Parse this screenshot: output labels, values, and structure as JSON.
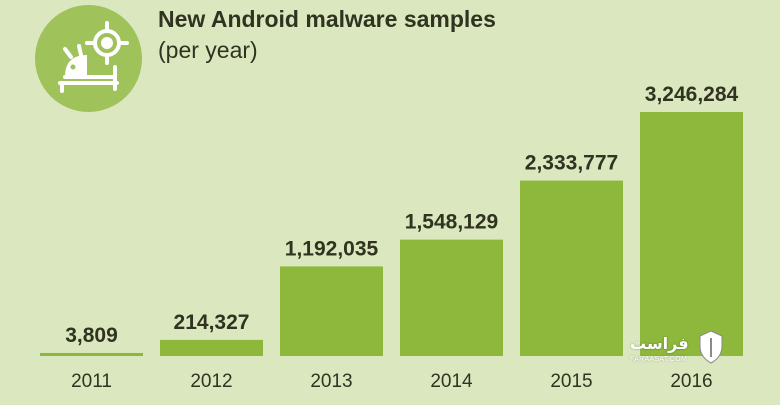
{
  "header": {
    "title_line1": "New Android malware samples",
    "title_line2": "(per year)"
  },
  "icons": {
    "badge": "android-target-icon",
    "watermark_shield": "shield-icon"
  },
  "colors": {
    "background": "#dbe8bf",
    "bar": "#8db83c",
    "badge": "#9fc25a",
    "text": "#2f3320"
  },
  "watermark": {
    "name": "فراست",
    "site": "FARAASAT.COM"
  },
  "chart_data": {
    "type": "bar",
    "categories": [
      "2011",
      "2012",
      "2013",
      "2014",
      "2015",
      "2016"
    ],
    "values": [
      3809,
      214327,
      1192035,
      1548129,
      2333777,
      3246284
    ],
    "value_labels": [
      "3,809",
      "214,327",
      "1,192,035",
      "1,548,129",
      "2,333,777",
      "3,246,284"
    ],
    "title": "New Android malware samples",
    "subtitle": "(per year)",
    "xlabel": "",
    "ylabel": "",
    "ylim": [
      0,
      3246284
    ],
    "grid": false,
    "legend": "none"
  }
}
